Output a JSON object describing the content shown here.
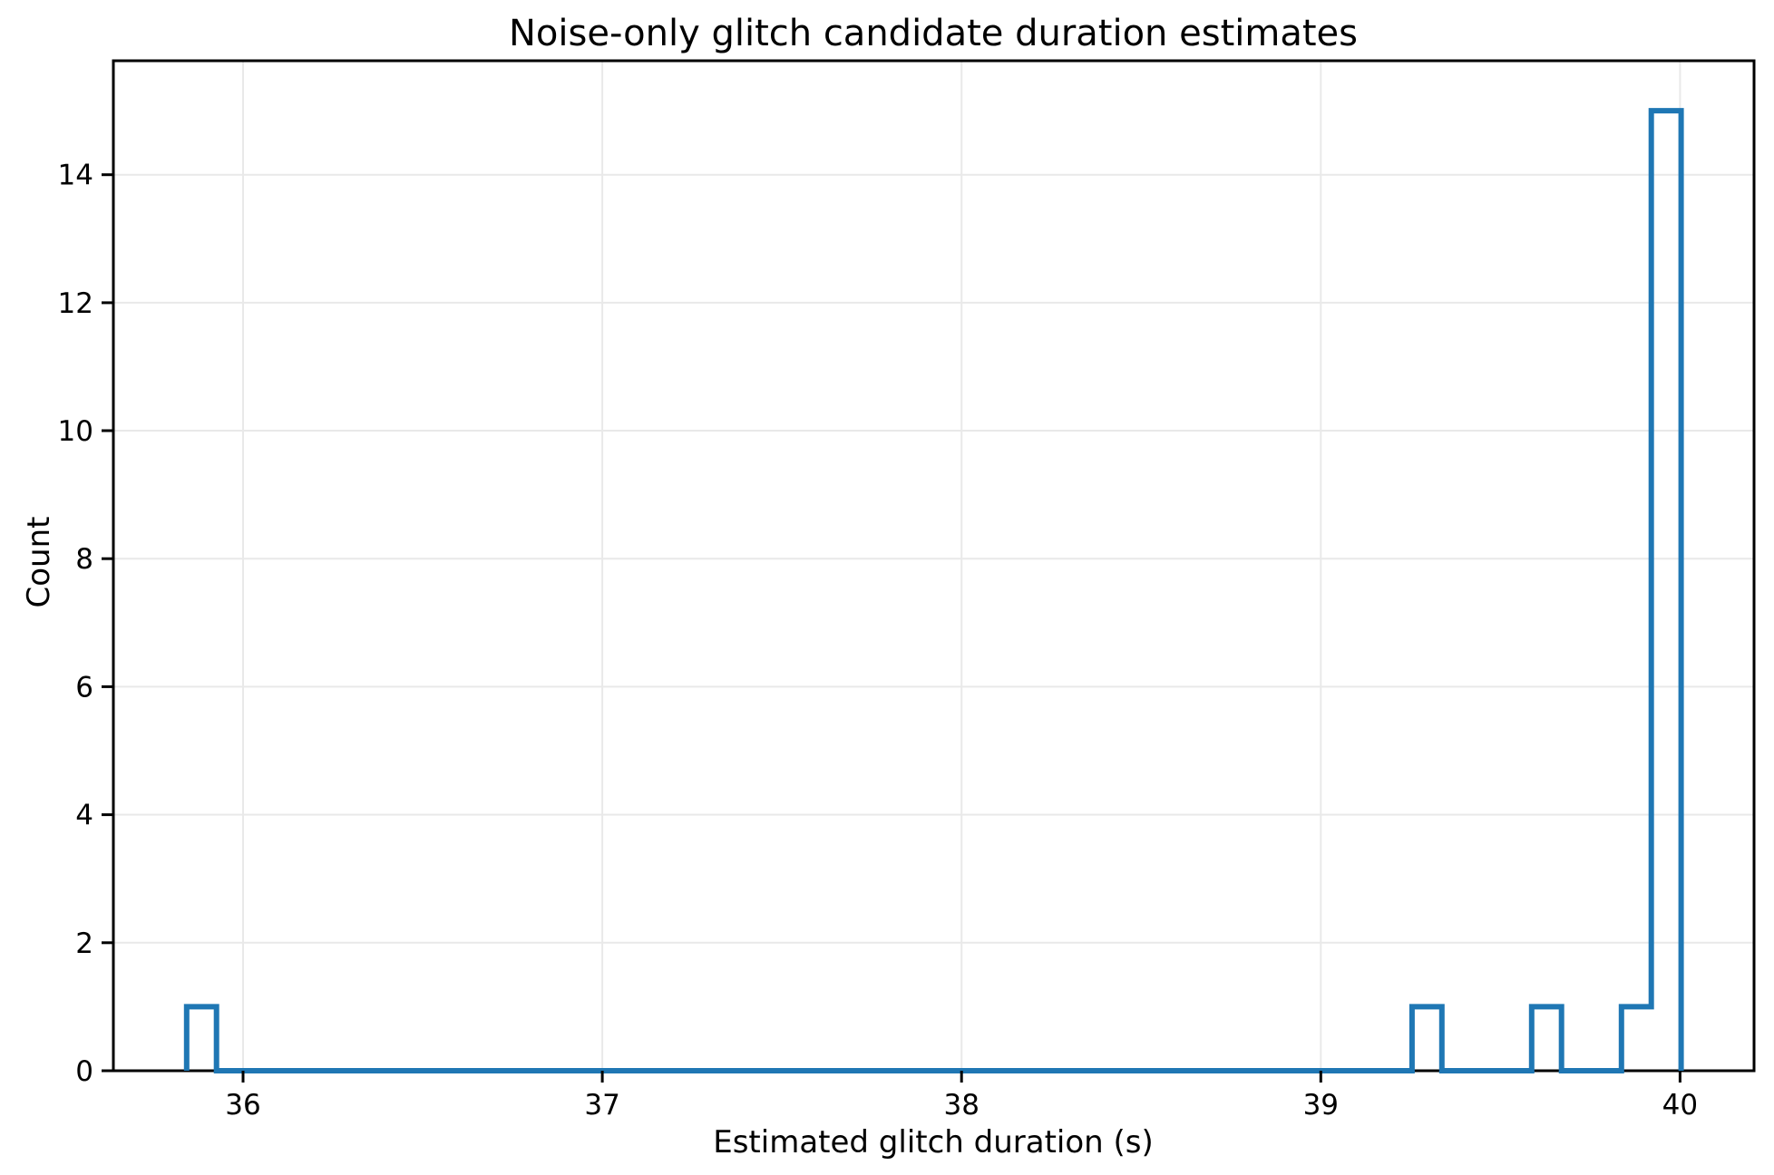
{
  "chart_data": {
    "type": "bar",
    "subtype": "step-histogram",
    "title": "Noise-only glitch candidate duration estimates",
    "xlabel": "Estimated glitch duration (s)",
    "ylabel": "Count",
    "xlim": [
      35.639,
      40.206
    ],
    "ylim": [
      0,
      15.78
    ],
    "xticks": [
      36,
      37,
      38,
      39,
      40
    ],
    "yticks": [
      0,
      2,
      4,
      6,
      8,
      10,
      12,
      14
    ],
    "grid": true,
    "legend": "none",
    "bin_width": 0.083,
    "bins": [
      {
        "left": 35.843,
        "right": 35.926,
        "count": 1
      },
      {
        "left": 39.254,
        "right": 39.337,
        "count": 1
      },
      {
        "left": 39.587,
        "right": 39.67,
        "count": 1
      },
      {
        "left": 39.837,
        "right": 39.92,
        "count": 1
      },
      {
        "left": 39.92,
        "right": 40.003,
        "count": 15
      }
    ],
    "colors": {
      "line": "#1f77b4",
      "grid": "#e9e9e9",
      "spine": "#000000",
      "text": "#000000",
      "background": "#ffffff"
    }
  }
}
